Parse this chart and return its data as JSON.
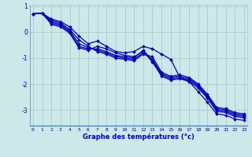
{
  "xlabel": "Graphe des températures (°c)",
  "background_color": "#cce8e8",
  "grid_color": "#aacccc",
  "line_color": "#0000bb",
  "x_ticks": [
    0,
    1,
    2,
    3,
    4,
    5,
    6,
    7,
    8,
    9,
    10,
    11,
    12,
    13,
    14,
    15,
    16,
    17,
    18,
    19,
    20,
    21,
    22,
    23
  ],
  "ylim": [
    -3.6,
    1.05
  ],
  "xlim": [
    -0.3,
    23.3
  ],
  "yticks": [
    1,
    0,
    -1,
    -2,
    -3
  ],
  "series": [
    [
      0.7,
      0.72,
      0.35,
      0.25,
      0.0,
      -0.55,
      -0.65,
      -0.65,
      -0.75,
      -0.9,
      -0.95,
      -1.0,
      -0.7,
      -1.1,
      -1.65,
      -1.8,
      -1.75,
      -1.85,
      -2.1,
      -2.5,
      -3.0,
      -3.05,
      -3.2,
      -3.25
    ],
    [
      0.7,
      0.72,
      0.3,
      0.2,
      -0.05,
      -0.6,
      -0.7,
      -0.55,
      -0.65,
      -0.8,
      -0.9,
      -0.95,
      -0.75,
      -1.15,
      -1.7,
      -1.85,
      -1.8,
      -1.9,
      -2.15,
      -2.55,
      -3.05,
      -3.1,
      -3.25,
      -3.3
    ],
    [
      0.7,
      0.72,
      0.4,
      0.3,
      0.05,
      -0.45,
      -0.6,
      -0.7,
      -0.8,
      -0.95,
      -1.0,
      -1.05,
      -0.8,
      -1.05,
      -1.6,
      -1.75,
      -1.7,
      -1.8,
      -2.05,
      -2.45,
      -2.95,
      -3.0,
      -3.15,
      -3.2
    ],
    [
      0.7,
      0.72,
      0.45,
      0.35,
      0.1,
      -0.3,
      -0.55,
      -0.75,
      -0.85,
      -1.0,
      -1.05,
      -1.1,
      -0.85,
      -0.95,
      -1.55,
      -1.7,
      -1.65,
      -1.75,
      -2.0,
      -2.4,
      -2.9,
      -2.95,
      -3.1,
      -3.15
    ],
    [
      0.7,
      0.72,
      0.5,
      0.4,
      0.2,
      -0.15,
      -0.45,
      -0.35,
      -0.55,
      -0.75,
      -0.8,
      -0.75,
      -0.55,
      -0.65,
      -0.85,
      -1.05,
      -1.75,
      -1.9,
      -2.3,
      -2.7,
      -3.15,
      -3.2,
      -3.35,
      -3.4
    ]
  ]
}
